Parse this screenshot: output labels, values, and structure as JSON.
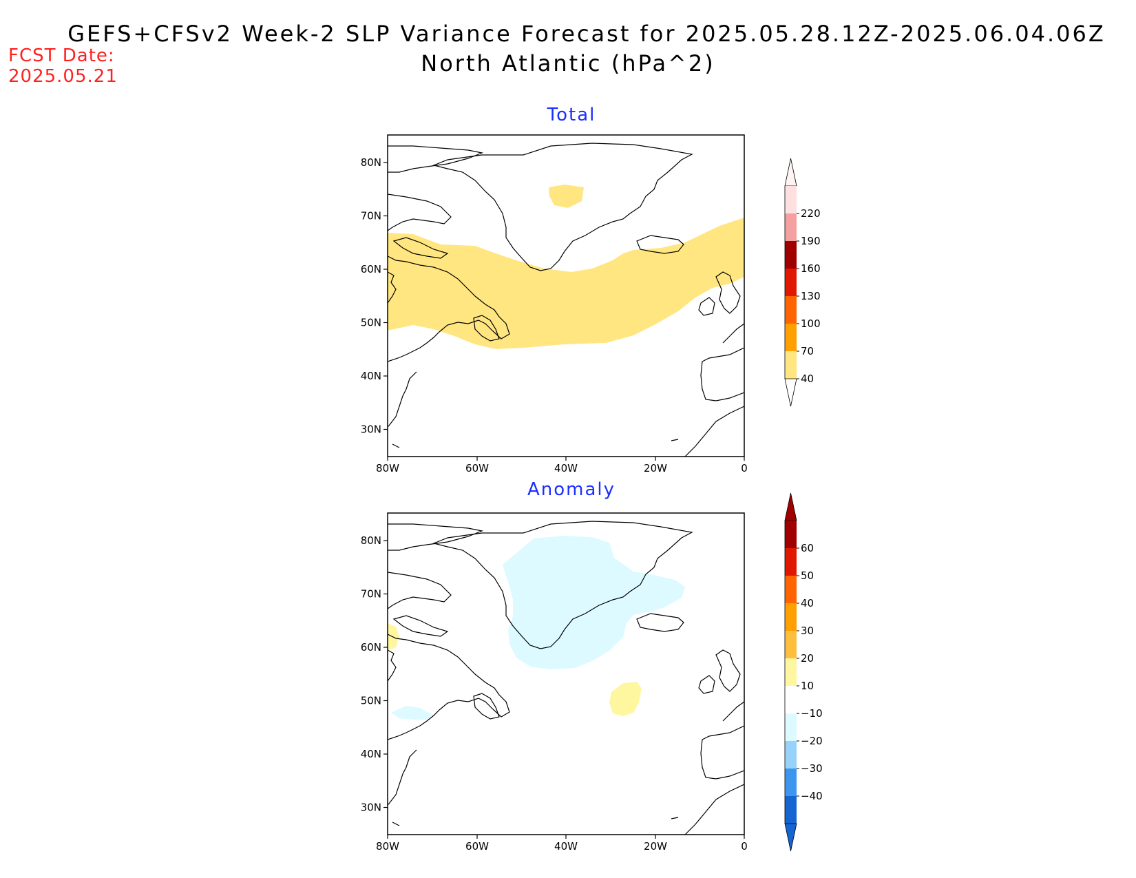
{
  "title": {
    "line1": "GEFS+CFSv2 Week-2 SLP Variance Forecast for 2025.05.28.12Z-2025.06.04.06Z",
    "line2": "North Atlantic (hPa^2)"
  },
  "forecast": {
    "label": "FCST Date:",
    "value": "2025.05.21"
  },
  "axes": {
    "lon_labels": [
      "80W",
      "60W",
      "40W",
      "20W",
      "0"
    ],
    "lat_labels": [
      "80N",
      "70N",
      "60N",
      "50N",
      "40N",
      "30N"
    ]
  },
  "panels": [
    {
      "title": "Total",
      "colorbar": {
        "labels": [
          "220",
          "190",
          "160",
          "130",
          "100",
          "70",
          "40"
        ],
        "colors": [
          "#ffe0e0",
          "#f4a0a0",
          "#a00000",
          "#e01800",
          "#ff6400",
          "#ffa000",
          "#ffe680"
        ]
      }
    },
    {
      "title": "Anomaly",
      "colorbar": {
        "labels": [
          "60",
          "50",
          "40",
          "30",
          "20",
          "10",
          "−10",
          "−20",
          "−30",
          "−40"
        ],
        "colors": [
          "#a00000",
          "#e01800",
          "#ff6400",
          "#ffa000",
          "#ffbe3c",
          "#fff6a0",
          "#ffffff",
          "#dcfaff",
          "#96d2fa",
          "#3c96f0",
          "#1464d2"
        ]
      }
    }
  ],
  "field_colors": {
    "total_shade": "#ffe680",
    "anom_neg_shade": "#dcfaff",
    "anom_pos_shade": "#fff6a0"
  }
}
